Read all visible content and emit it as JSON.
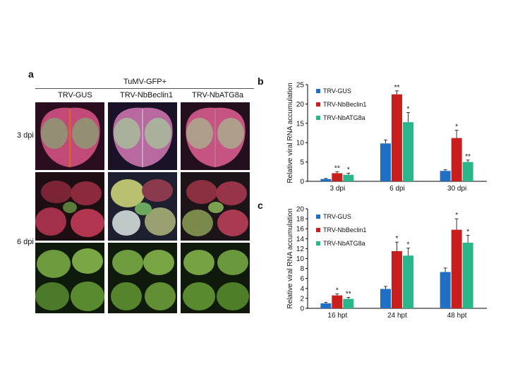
{
  "panel_a": {
    "letter": "a",
    "virus_label": "TuMV-GFP+",
    "columns": [
      "TRV-GUS",
      "TRV-NbBeclin1",
      "TRV-NbATG8a"
    ],
    "rows": [
      "3 dpi",
      "6 dpi"
    ]
  },
  "panel_b_letter": "b",
  "panel_c_letter": "c",
  "colors": {
    "TRV-GUS": "#1f6fc4",
    "TRV-NbBeclin1": "#c81e1e",
    "TRV-NbATG8a": "#2bb58a"
  },
  "chart_data": [
    {
      "type": "bar",
      "ylabel": "Relative viral RNA accumulation",
      "ylim": [
        0,
        25
      ],
      "yticks": [
        "0",
        "5",
        "10",
        "15",
        "20",
        "25"
      ],
      "categories": [
        "3 dpi",
        "6 dpi",
        "30 dpi"
      ],
      "legend_position": "top-left",
      "series": [
        {
          "name": "TRV-GUS",
          "values": [
            0.6,
            9.8,
            2.7
          ],
          "errors": [
            0.15,
            0.9,
            0.3
          ],
          "sig": [
            "",
            "",
            ""
          ]
        },
        {
          "name": "TRV-NbBeclin1",
          "values": [
            2.1,
            22.5,
            11.2
          ],
          "errors": [
            0.4,
            0.9,
            2.0
          ],
          "sig": [
            "**",
            "**",
            "*"
          ]
        },
        {
          "name": "TRV-NbATG8a",
          "values": [
            1.7,
            15.3,
            5.0
          ],
          "errors": [
            0.4,
            2.5,
            0.5
          ],
          "sig": [
            "*",
            "*",
            "**"
          ]
        }
      ]
    },
    {
      "type": "bar",
      "ylabel": "Relative viral RNA accumulation",
      "ylim": [
        0,
        20
      ],
      "yticks": [
        "0",
        "2",
        "4",
        "6",
        "8",
        "10",
        "12",
        "14",
        "16",
        "18",
        "20"
      ],
      "categories": [
        "16 hpt",
        "24 hpt",
        "48 hpt"
      ],
      "legend_position": "top-left",
      "series": [
        {
          "name": "TRV-GUS",
          "values": [
            1.0,
            3.9,
            7.3
          ],
          "errors": [
            0.2,
            0.5,
            0.8
          ],
          "sig": [
            "",
            "",
            ""
          ]
        },
        {
          "name": "TRV-NbBeclin1",
          "values": [
            2.6,
            11.5,
            15.8
          ],
          "errors": [
            0.3,
            1.8,
            2.2
          ],
          "sig": [
            "*",
            "*",
            "*"
          ]
        },
        {
          "name": "TRV-NbATG8a",
          "values": [
            1.9,
            10.6,
            13.2
          ],
          "errors": [
            0.3,
            1.5,
            1.5
          ],
          "sig": [
            "**",
            "*",
            "*"
          ]
        }
      ]
    }
  ]
}
